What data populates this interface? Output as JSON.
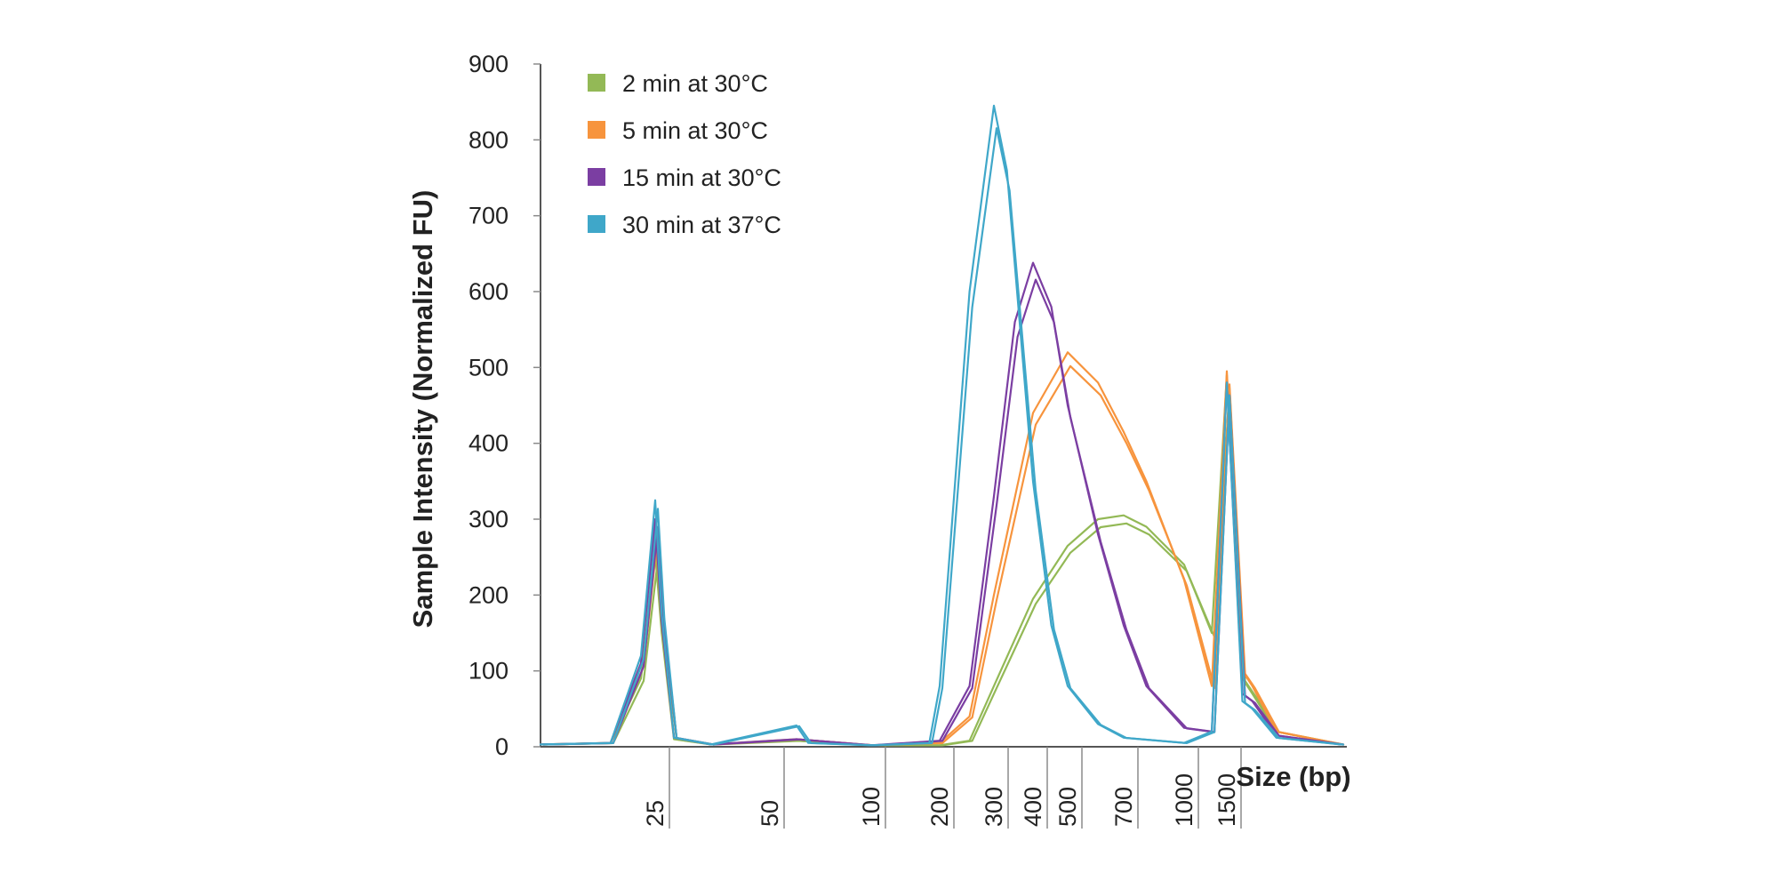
{
  "chart_data": {
    "type": "line",
    "title": "",
    "xlabel": "Size (bp)",
    "ylabel": "Sample Intensity (Normalized FU)",
    "ylim": [
      0,
      900
    ],
    "yticks": [
      "0",
      "100",
      "200",
      "300",
      "400",
      "500",
      "600",
      "700",
      "800",
      "900"
    ],
    "xscale": "log (electropherogram size axis)",
    "xticks": [
      "25",
      "50",
      "100",
      "200",
      "300",
      "400",
      "500",
      "700",
      "1000",
      "1500"
    ],
    "grid": false,
    "legend_position": "top-left",
    "series": [
      {
        "name": "2 min at 30°C",
        "color": "#93b956",
        "points": [
          [
            18,
            3
          ],
          [
            22,
            5
          ],
          [
            24,
            90
          ],
          [
            25,
            255
          ],
          [
            26,
            150
          ],
          [
            28,
            10
          ],
          [
            35,
            3
          ],
          [
            60,
            8
          ],
          [
            100,
            2
          ],
          [
            200,
            2
          ],
          [
            250,
            8
          ],
          [
            300,
            80
          ],
          [
            400,
            195
          ],
          [
            500,
            265
          ],
          [
            600,
            300
          ],
          [
            700,
            305
          ],
          [
            800,
            290
          ],
          [
            1000,
            240
          ],
          [
            1300,
            150
          ],
          [
            1500,
            490
          ],
          [
            1560,
            90
          ],
          [
            1600,
            70
          ],
          [
            1700,
            20
          ],
          [
            2000,
            3
          ]
        ]
      },
      {
        "name": "5 min at 30°C",
        "color": "#f7943d",
        "points": [
          [
            18,
            3
          ],
          [
            22,
            5
          ],
          [
            24,
            110
          ],
          [
            25,
            290
          ],
          [
            26,
            165
          ],
          [
            28,
            12
          ],
          [
            35,
            3
          ],
          [
            60,
            10
          ],
          [
            100,
            2
          ],
          [
            200,
            5
          ],
          [
            250,
            40
          ],
          [
            300,
            200
          ],
          [
            400,
            440
          ],
          [
            500,
            520
          ],
          [
            600,
            480
          ],
          [
            700,
            415
          ],
          [
            800,
            350
          ],
          [
            1000,
            220
          ],
          [
            1300,
            80
          ],
          [
            1500,
            495
          ],
          [
            1560,
            100
          ],
          [
            1600,
            80
          ],
          [
            1700,
            20
          ],
          [
            2000,
            3
          ]
        ]
      },
      {
        "name": "15 min at 30°C",
        "color": "#7b3ea2",
        "points": [
          [
            18,
            3
          ],
          [
            22,
            5
          ],
          [
            24,
            110
          ],
          [
            25,
            300
          ],
          [
            26,
            165
          ],
          [
            28,
            12
          ],
          [
            35,
            3
          ],
          [
            60,
            10
          ],
          [
            100,
            2
          ],
          [
            200,
            8
          ],
          [
            250,
            80
          ],
          [
            300,
            330
          ],
          [
            350,
            560
          ],
          [
            400,
            638
          ],
          [
            450,
            580
          ],
          [
            500,
            450
          ],
          [
            600,
            280
          ],
          [
            700,
            160
          ],
          [
            800,
            80
          ],
          [
            1000,
            25
          ],
          [
            1300,
            20
          ],
          [
            1500,
            480
          ],
          [
            1560,
            70
          ],
          [
            1600,
            60
          ],
          [
            1700,
            15
          ],
          [
            2000,
            3
          ]
        ]
      },
      {
        "name": "30 min at 37°C",
        "color": "#3fa7c9",
        "points": [
          [
            18,
            3
          ],
          [
            22,
            5
          ],
          [
            24,
            120
          ],
          [
            25,
            325
          ],
          [
            26,
            175
          ],
          [
            28,
            12
          ],
          [
            35,
            3
          ],
          [
            60,
            28
          ],
          [
            65,
            5
          ],
          [
            100,
            2
          ],
          [
            180,
            5
          ],
          [
            200,
            80
          ],
          [
            250,
            600
          ],
          [
            300,
            845
          ],
          [
            330,
            760
          ],
          [
            400,
            350
          ],
          [
            450,
            160
          ],
          [
            500,
            80
          ],
          [
            600,
            30
          ],
          [
            700,
            12
          ],
          [
            1000,
            5
          ],
          [
            1300,
            20
          ],
          [
            1500,
            480
          ],
          [
            1560,
            60
          ],
          [
            1600,
            50
          ],
          [
            1700,
            12
          ],
          [
            2000,
            3
          ]
        ]
      }
    ]
  }
}
